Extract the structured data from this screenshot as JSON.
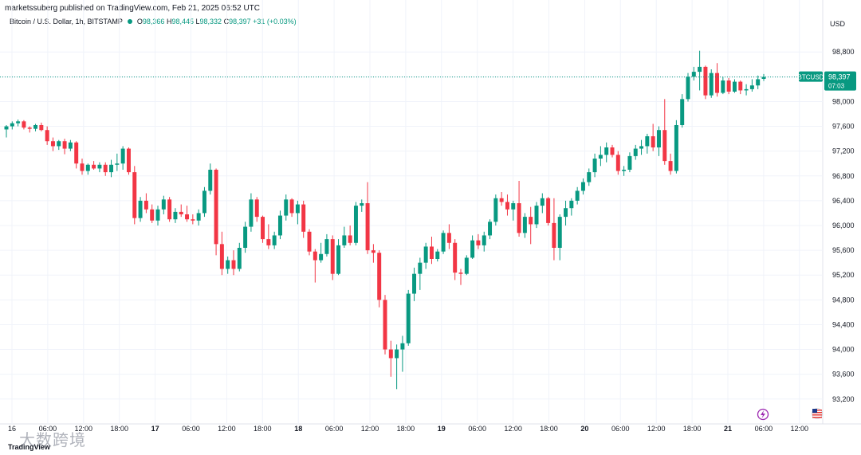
{
  "header": {
    "published": "marketssuberg published on TradingView.com, Feb 21, 2025 06:52 UTC"
  },
  "symbol": {
    "name": "Bitcoin / U.S. Dollar, 1h, BITSTAMP",
    "open_label": "O",
    "open": "98,366",
    "high_label": "H",
    "high": "98,445",
    "low_label": "L",
    "low": "98,332",
    "close_label": "C",
    "close": "98,397",
    "change": "+31 (+0.03%)"
  },
  "currency": "USD",
  "price_tag": {
    "symbol": "BTCUSD",
    "price": "98,397",
    "countdown": "07:03"
  },
  "watermark": "大数跨境",
  "logo": "TradingView",
  "colors": {
    "up": "#089981",
    "down": "#F23645",
    "grid": "#F0F3FA",
    "text": "#131722",
    "last": "#089981",
    "purple": "#9C27B0"
  },
  "icons": [
    "lightning-icon",
    "us-flag-icon"
  ],
  "chart_data": {
    "type": "candlestick",
    "title": "Bitcoin / U.S. Dollar, 1h, BITSTAMP",
    "y_ticks": [
      93200,
      93600,
      94000,
      94400,
      94800,
      95200,
      95600,
      96000,
      96400,
      96800,
      97200,
      97600,
      98000,
      98400,
      98800
    ],
    "ylim": [
      92850,
      99150
    ],
    "x_labels": [
      "16",
      "06:00",
      "12:00",
      "18:00",
      "17",
      "06:00",
      "12:00",
      "18:00",
      "18",
      "06:00",
      "12:00",
      "18:00",
      "19",
      "06:00",
      "12:00",
      "18:00",
      "20",
      "06:00",
      "12:00",
      "18:00",
      "21",
      "06:00",
      "12:00"
    ],
    "bold_labels": [
      "17",
      "18",
      "19",
      "20",
      "21"
    ],
    "last_price": 98397,
    "candles": [
      [
        97550,
        97620,
        97420,
        97600
      ],
      [
        97600,
        97680,
        97550,
        97650
      ],
      [
        97650,
        97710,
        97600,
        97680
      ],
      [
        97680,
        97700,
        97550,
        97580
      ],
      [
        97580,
        97600,
        97500,
        97560
      ],
      [
        97560,
        97640,
        97520,
        97620
      ],
      [
        97620,
        97660,
        97520,
        97540
      ],
      [
        97540,
        97600,
        97300,
        97360
      ],
      [
        97360,
        97420,
        97200,
        97280
      ],
      [
        97280,
        97380,
        97220,
        97360
      ],
      [
        97360,
        97400,
        97150,
        97240
      ],
      [
        97240,
        97380,
        97200,
        97340
      ],
      [
        97340,
        97360,
        96920,
        97000
      ],
      [
        97000,
        97080,
        96820,
        96880
      ],
      [
        96880,
        97000,
        96820,
        96980
      ],
      [
        96980,
        97040,
        96900,
        96920
      ],
      [
        96920,
        97020,
        96860,
        96980
      ],
      [
        96980,
        97020,
        96800,
        96860
      ],
      [
        96860,
        97060,
        96780,
        96980
      ],
      [
        96980,
        97160,
        96880,
        97000
      ],
      [
        97000,
        97280,
        96900,
        97240
      ],
      [
        97240,
        97260,
        96820,
        96860
      ],
      [
        96860,
        96960,
        96020,
        96120
      ],
      [
        96120,
        96460,
        96060,
        96400
      ],
      [
        96400,
        96520,
        96200,
        96260
      ],
      [
        96260,
        96340,
        96040,
        96080
      ],
      [
        96080,
        96320,
        96000,
        96260
      ],
      [
        96260,
        96480,
        96180,
        96420
      ],
      [
        96420,
        96460,
        96060,
        96100
      ],
      [
        96100,
        96280,
        96040,
        96220
      ],
      [
        96220,
        96340,
        96140,
        96180
      ],
      [
        96180,
        96320,
        96060,
        96100
      ],
      [
        96100,
        96180,
        96020,
        96080
      ],
      [
        96080,
        96260,
        96000,
        96200
      ],
      [
        96200,
        96620,
        96140,
        96560
      ],
      [
        96560,
        97000,
        96500,
        96900
      ],
      [
        96900,
        96920,
        95520,
        95700
      ],
      [
        95700,
        95900,
        95200,
        95300
      ],
      [
        95300,
        95500,
        95220,
        95440
      ],
      [
        95440,
        95600,
        95200,
        95300
      ],
      [
        95300,
        95720,
        95260,
        95640
      ],
      [
        95640,
        96060,
        95560,
        95980
      ],
      [
        95980,
        96520,
        95900,
        96420
      ],
      [
        96420,
        96460,
        96060,
        96140
      ],
      [
        96140,
        96160,
        95720,
        95780
      ],
      [
        95780,
        96020,
        95620,
        95680
      ],
      [
        95680,
        95900,
        95620,
        95840
      ],
      [
        95840,
        96240,
        95780,
        96160
      ],
      [
        96160,
        96500,
        96080,
        96420
      ],
      [
        96420,
        96440,
        96140,
        96200
      ],
      [
        96200,
        96400,
        96020,
        96340
      ],
      [
        96340,
        96400,
        95800,
        95900
      ],
      [
        95900,
        95940,
        95520,
        95580
      ],
      [
        95580,
        95620,
        95080,
        95440
      ],
      [
        95440,
        95720,
        95400,
        95540
      ],
      [
        95540,
        95860,
        95500,
        95780
      ],
      [
        95780,
        95840,
        95120,
        95220
      ],
      [
        95220,
        95780,
        95200,
        95680
      ],
      [
        95680,
        95980,
        95640,
        95840
      ],
      [
        95840,
        96000,
        95680,
        95720
      ],
      [
        95720,
        96380,
        95680,
        96320
      ],
      [
        96320,
        96420,
        96220,
        96360
      ],
      [
        96360,
        96700,
        95540,
        95600
      ],
      [
        95600,
        95700,
        95400,
        95560
      ],
      [
        95560,
        95600,
        94680,
        94800
      ],
      [
        94800,
        94880,
        93920,
        94000
      ],
      [
        94000,
        94140,
        93560,
        93860
      ],
      [
        93860,
        94080,
        93360,
        94000
      ],
      [
        94000,
        94220,
        93640,
        94100
      ],
      [
        94100,
        94960,
        94060,
        94900
      ],
      [
        94900,
        95320,
        94780,
        95220
      ],
      [
        95220,
        95480,
        94960,
        95400
      ],
      [
        95400,
        95720,
        95300,
        95660
      ],
      [
        95660,
        95820,
        95380,
        95460
      ],
      [
        95460,
        95620,
        95420,
        95580
      ],
      [
        95580,
        95920,
        95540,
        95880
      ],
      [
        95880,
        96020,
        95620,
        95720
      ],
      [
        95720,
        95780,
        95120,
        95240
      ],
      [
        95240,
        95300,
        95040,
        95220
      ],
      [
        95220,
        95520,
        95200,
        95480
      ],
      [
        95480,
        95840,
        95460,
        95760
      ],
      [
        95760,
        95860,
        95620,
        95680
      ],
      [
        95680,
        95900,
        95580,
        95840
      ],
      [
        95840,
        96100,
        95780,
        96060
      ],
      [
        96060,
        96500,
        96000,
        96440
      ],
      [
        96440,
        96540,
        96320,
        96380
      ],
      [
        96380,
        96500,
        96160,
        96260
      ],
      [
        96260,
        96400,
        96080,
        96360
      ],
      [
        96360,
        96720,
        95820,
        95880
      ],
      [
        95880,
        96200,
        95800,
        96140
      ],
      [
        96140,
        96300,
        95700,
        96020
      ],
      [
        96020,
        96380,
        95960,
        96320
      ],
      [
        96320,
        96520,
        96200,
        96440
      ],
      [
        96440,
        96460,
        96000,
        96040
      ],
      [
        96040,
        96440,
        95440,
        95640
      ],
      [
        95640,
        96180,
        95440,
        96140
      ],
      [
        96140,
        96400,
        96000,
        96280
      ],
      [
        96280,
        96440,
        96160,
        96400
      ],
      [
        96400,
        96620,
        96340,
        96560
      ],
      [
        96560,
        96760,
        96500,
        96700
      ],
      [
        96700,
        96920,
        96640,
        96860
      ],
      [
        96860,
        97160,
        96780,
        97080
      ],
      [
        97080,
        97280,
        96960,
        97140
      ],
      [
        97140,
        97340,
        97020,
        97260
      ],
      [
        97260,
        97300,
        97100,
        97140
      ],
      [
        97140,
        97200,
        96820,
        96880
      ],
      [
        96880,
        96960,
        96800,
        96900
      ],
      [
        96900,
        97180,
        96860,
        97120
      ],
      [
        97120,
        97300,
        97060,
        97240
      ],
      [
        97240,
        97380,
        97140,
        97280
      ],
      [
        97280,
        97480,
        97160,
        97440
      ],
      [
        97440,
        97640,
        97200,
        97260
      ],
      [
        97260,
        97600,
        97120,
        97540
      ],
      [
        97540,
        98040,
        96980,
        97040
      ],
      [
        97040,
        97160,
        96820,
        96880
      ],
      [
        96880,
        97700,
        96840,
        97620
      ],
      [
        97620,
        98120,
        97580,
        98040
      ],
      [
        98040,
        98460,
        98000,
        98400
      ],
      [
        98400,
        98560,
        98340,
        98480
      ],
      [
        98480,
        98820,
        98180,
        98560
      ],
      [
        98560,
        98580,
        98040,
        98100
      ],
      [
        98100,
        98520,
        98060,
        98460
      ],
      [
        98460,
        98620,
        98080,
        98140
      ],
      [
        98140,
        98400,
        98120,
        98340
      ],
      [
        98340,
        98380,
        98120,
        98160
      ],
      [
        98160,
        98360,
        98140,
        98320
      ],
      [
        98320,
        98340,
        98120,
        98180
      ],
      [
        98180,
        98280,
        98100,
        98200
      ],
      [
        98200,
        98360,
        98160,
        98260
      ],
      [
        98260,
        98420,
        98200,
        98360
      ],
      [
        98366,
        98445,
        98332,
        98397
      ]
    ]
  }
}
